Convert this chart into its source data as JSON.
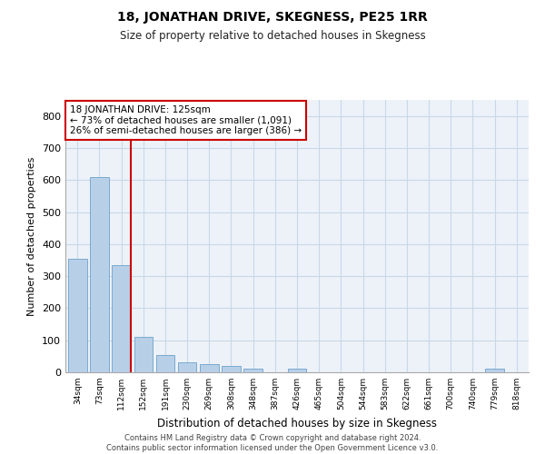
{
  "title": "18, JONATHAN DRIVE, SKEGNESS, PE25 1RR",
  "subtitle": "Size of property relative to detached houses in Skegness",
  "xlabel": "Distribution of detached houses by size in Skegness",
  "ylabel": "Number of detached properties",
  "bar_color": "#b8cfe8",
  "bar_edge_color": "#7aaad0",
  "grid_color": "#c8d8e8",
  "vline_color": "#cc0000",
  "vline_x_index": 2,
  "annotation_text": "18 JONATHAN DRIVE: 125sqm\n← 73% of detached houses are smaller (1,091)\n26% of semi-detached houses are larger (386) →",
  "annotation_box_color": "#ffffff",
  "annotation_box_edgecolor": "#cc0000",
  "categories": [
    "34sqm",
    "73sqm",
    "112sqm",
    "152sqm",
    "191sqm",
    "230sqm",
    "269sqm",
    "308sqm",
    "348sqm",
    "387sqm",
    "426sqm",
    "465sqm",
    "504sqm",
    "544sqm",
    "583sqm",
    "622sqm",
    "661sqm",
    "700sqm",
    "740sqm",
    "779sqm",
    "818sqm"
  ],
  "values": [
    355,
    610,
    335,
    110,
    55,
    30,
    25,
    20,
    10,
    0,
    10,
    0,
    0,
    0,
    0,
    0,
    0,
    0,
    0,
    10,
    0
  ],
  "ylim": [
    0,
    850
  ],
  "yticks": [
    0,
    100,
    200,
    300,
    400,
    500,
    600,
    700,
    800
  ],
  "background_color": "#edf2f8",
  "footer": "Contains HM Land Registry data © Crown copyright and database right 2024.\nContains public sector information licensed under the Open Government Licence v3.0."
}
